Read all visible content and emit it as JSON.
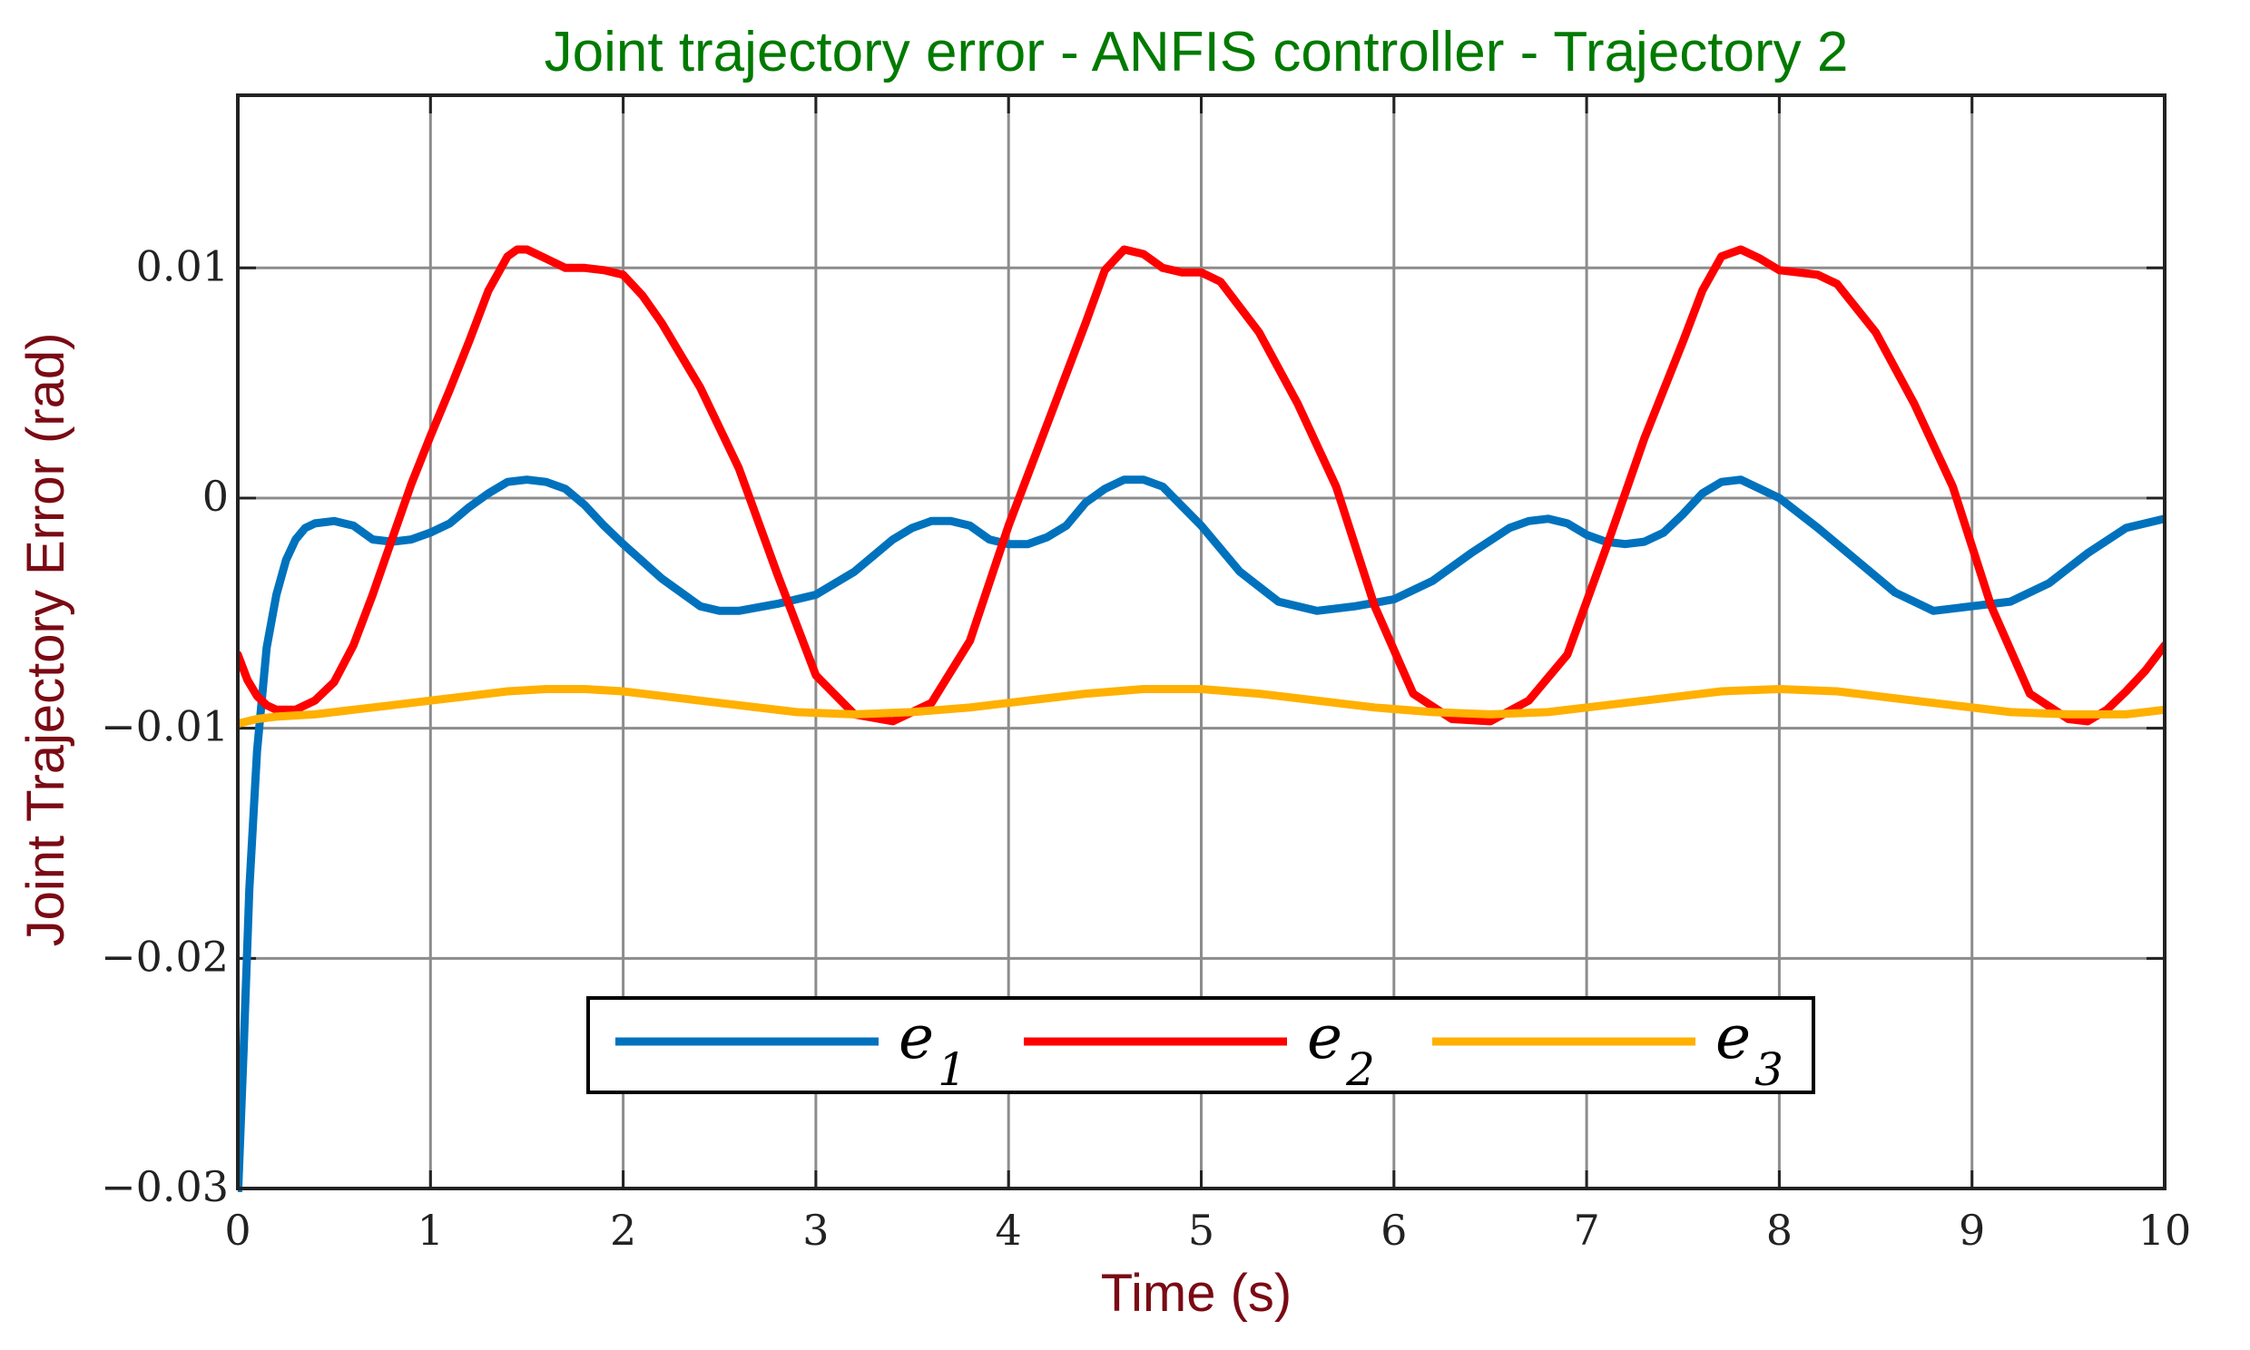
{
  "chart_data": {
    "type": "line",
    "title": "Joint trajectory error - ANFIS controller - Trajectory 2",
    "xlabel": "Time (s)",
    "ylabel": "Joint Trajectory Error (rad)",
    "xlim": [
      0,
      10
    ],
    "ylim": [
      -0.03,
      0.0175
    ],
    "grid": true,
    "legend_position": "bottom-center",
    "x_ticks": [
      0,
      1,
      2,
      3,
      4,
      5,
      6,
      7,
      8,
      9,
      10
    ],
    "x_tick_labels": [
      "0",
      "1",
      "2",
      "3",
      "4",
      "5",
      "6",
      "7",
      "8",
      "9",
      "10"
    ],
    "y_ticks": [
      -0.03,
      -0.02,
      -0.01,
      0,
      0.01
    ],
    "y_tick_labels": [
      "−0.03",
      "−0.02",
      "−0.01",
      "0",
      "0.01"
    ],
    "colors": {
      "title": "#007a00",
      "axis_label": "#7a0a14",
      "grid": "#8c8c8c",
      "axes": "#222222"
    },
    "series": [
      {
        "name": "e",
        "subscript": "1",
        "color": "#0072bd",
        "x": [
          0,
          0.03,
          0.06,
          0.1,
          0.15,
          0.2,
          0.25,
          0.3,
          0.35,
          0.4,
          0.5,
          0.6,
          0.7,
          0.8,
          0.9,
          1.0,
          1.1,
          1.2,
          1.3,
          1.4,
          1.5,
          1.6,
          1.7,
          1.8,
          1.9,
          2.0,
          2.2,
          2.4,
          2.5,
          2.6,
          2.8,
          3.0,
          3.2,
          3.4,
          3.5,
          3.6,
          3.7,
          3.8,
          3.9,
          4.0,
          4.1,
          4.2,
          4.3,
          4.4,
          4.5,
          4.6,
          4.7,
          4.8,
          5.0,
          5.2,
          5.4,
          5.6,
          5.8,
          6.0,
          6.2,
          6.4,
          6.6,
          6.7,
          6.8,
          6.9,
          7.0,
          7.1,
          7.2,
          7.3,
          7.4,
          7.5,
          7.6,
          7.7,
          7.8,
          8.0,
          8.2,
          8.4,
          8.6,
          8.8,
          9.0,
          9.2,
          9.4,
          9.6,
          9.8,
          10.0
        ],
        "y": [
          -0.0305,
          -0.024,
          -0.017,
          -0.011,
          -0.0065,
          -0.0042,
          -0.0027,
          -0.0018,
          -0.0013,
          -0.0011,
          -0.001,
          -0.0012,
          -0.0018,
          -0.0019,
          -0.0018,
          -0.0015,
          -0.0011,
          -0.0004,
          0.0002,
          0.0007,
          0.0008,
          0.0007,
          0.0004,
          -0.0003,
          -0.0012,
          -0.002,
          -0.0035,
          -0.0047,
          -0.0049,
          -0.0049,
          -0.0046,
          -0.0042,
          -0.0032,
          -0.0018,
          -0.0013,
          -0.001,
          -0.001,
          -0.0012,
          -0.0018,
          -0.002,
          -0.002,
          -0.0017,
          -0.0012,
          -0.0002,
          0.0004,
          0.0008,
          0.0008,
          0.0005,
          -0.0012,
          -0.0032,
          -0.0045,
          -0.0049,
          -0.0047,
          -0.0044,
          -0.0036,
          -0.0024,
          -0.0013,
          -0.001,
          -0.0009,
          -0.0011,
          -0.0016,
          -0.0019,
          -0.002,
          -0.0019,
          -0.0015,
          -0.0007,
          0.0002,
          0.0007,
          0.0008,
          0.0,
          -0.0013,
          -0.0027,
          -0.0041,
          -0.0049,
          -0.0047,
          -0.0045,
          -0.0037,
          -0.0024,
          -0.0013,
          -0.0009
        ]
      },
      {
        "name": "e",
        "subscript": "2",
        "color": "#ff0000",
        "x": [
          0,
          0.05,
          0.1,
          0.15,
          0.2,
          0.3,
          0.4,
          0.5,
          0.6,
          0.7,
          0.8,
          0.9,
          1.0,
          1.1,
          1.2,
          1.3,
          1.4,
          1.45,
          1.5,
          1.6,
          1.7,
          1.8,
          1.9,
          2.0,
          2.1,
          2.2,
          2.4,
          2.6,
          2.8,
          3.0,
          3.2,
          3.4,
          3.6,
          3.8,
          4.0,
          4.2,
          4.4,
          4.5,
          4.6,
          4.7,
          4.8,
          4.9,
          5.0,
          5.1,
          5.3,
          5.5,
          5.7,
          5.9,
          6.1,
          6.3,
          6.5,
          6.7,
          6.9,
          7.1,
          7.3,
          7.5,
          7.6,
          7.7,
          7.8,
          7.9,
          8.0,
          8.1,
          8.2,
          8.3,
          8.5,
          8.7,
          8.9,
          9.1,
          9.3,
          9.5,
          9.6,
          9.7,
          9.8,
          9.9,
          10.0
        ],
        "y": [
          -0.0068,
          -0.0079,
          -0.0086,
          -0.009,
          -0.0092,
          -0.0092,
          -0.0088,
          -0.008,
          -0.0064,
          -0.0042,
          -0.0018,
          0.0006,
          0.0027,
          0.0047,
          0.0068,
          0.009,
          0.0105,
          0.0108,
          0.0108,
          0.0104,
          0.01,
          0.01,
          0.0099,
          0.0097,
          0.0088,
          0.0076,
          0.0048,
          0.0013,
          -0.0033,
          -0.0077,
          -0.0094,
          -0.0097,
          -0.0089,
          -0.0062,
          -0.0012,
          0.0032,
          0.0076,
          0.0099,
          0.0108,
          0.0106,
          0.01,
          0.0098,
          0.0098,
          0.0094,
          0.0072,
          0.0041,
          0.0005,
          -0.0047,
          -0.0085,
          -0.0096,
          -0.0097,
          -0.0088,
          -0.0068,
          -0.0022,
          0.0026,
          0.0068,
          0.009,
          0.0105,
          0.0108,
          0.0104,
          0.0099,
          0.0098,
          0.0097,
          0.0093,
          0.0072,
          0.0041,
          0.0005,
          -0.0047,
          -0.0085,
          -0.0096,
          -0.0097,
          -0.0092,
          -0.0084,
          -0.0075,
          -0.0064
        ]
      },
      {
        "name": "e",
        "subscript": "3",
        "color": "#ffb000",
        "x": [
          0,
          0.1,
          0.2,
          0.4,
          0.6,
          0.8,
          1.0,
          1.2,
          1.4,
          1.6,
          1.8,
          2.0,
          2.3,
          2.6,
          2.9,
          3.2,
          3.5,
          3.8,
          4.1,
          4.4,
          4.7,
          5.0,
          5.3,
          5.6,
          5.9,
          6.2,
          6.5,
          6.8,
          7.1,
          7.4,
          7.7,
          8.0,
          8.3,
          8.6,
          8.9,
          9.2,
          9.5,
          9.8,
          10.0
        ],
        "y": [
          -0.0098,
          -0.0096,
          -0.0095,
          -0.0094,
          -0.0092,
          -0.009,
          -0.0088,
          -0.0086,
          -0.0084,
          -0.0083,
          -0.0083,
          -0.0084,
          -0.0087,
          -0.009,
          -0.0093,
          -0.0094,
          -0.0093,
          -0.0091,
          -0.0088,
          -0.0085,
          -0.0083,
          -0.0083,
          -0.0085,
          -0.0088,
          -0.0091,
          -0.0093,
          -0.0094,
          -0.0093,
          -0.009,
          -0.0087,
          -0.0084,
          -0.0083,
          -0.0084,
          -0.0087,
          -0.009,
          -0.0093,
          -0.0094,
          -0.0094,
          -0.0092
        ]
      }
    ]
  }
}
